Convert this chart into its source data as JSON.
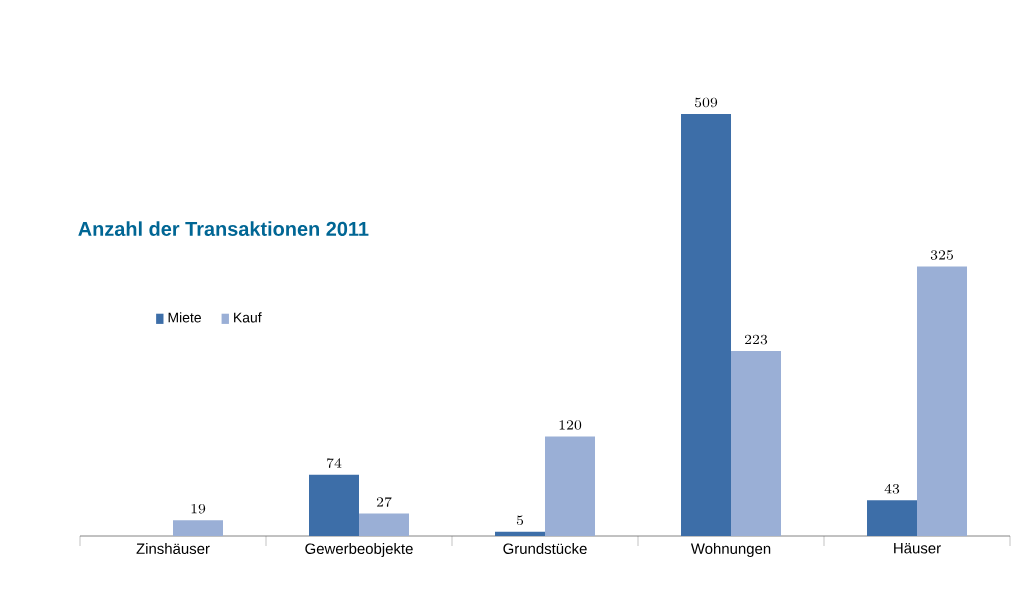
{
  "chart_data": {
    "type": "bar",
    "title": "Anzahl der Transaktionen 2011",
    "categories": [
      "Zinshäuser",
      "Gewerbeobjekte",
      "Grundstücke",
      "Wohnungen",
      "Häuser"
    ],
    "series": [
      {
        "name": "Miete",
        "color": "#3d6ea8",
        "values": [
          null,
          74,
          5,
          509,
          43
        ]
      },
      {
        "name": "Kauf",
        "color": "#9aafd6",
        "values": [
          19,
          27,
          120,
          223,
          325
        ]
      }
    ],
    "data_labels": true,
    "legend": "top left"
  }
}
